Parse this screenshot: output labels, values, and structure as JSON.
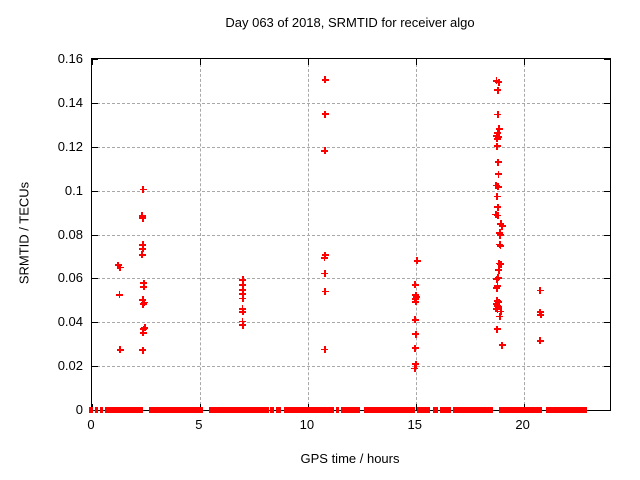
{
  "chart_data": {
    "type": "scatter",
    "title": "Day 063 of 2018, SRMTID for receiver algo",
    "xlabel": "GPS time / hours",
    "ylabel": "SRMTID / TECUs",
    "xlim": [
      0,
      24
    ],
    "ylim": [
      0,
      0.16
    ],
    "grid": true,
    "legend": "none",
    "marker": "plus",
    "marker_color": "#ff0000",
    "background_color": "#ffffff",
    "grid_color": "#a8a8a8",
    "x_ticks": [
      0,
      5,
      10,
      15,
      20
    ],
    "x_tick_labels": [
      "0",
      "5",
      "10",
      "15",
      "20"
    ],
    "y_ticks": [
      0,
      0.02,
      0.04,
      0.06,
      0.08,
      0.1,
      0.12,
      0.14,
      0.16
    ],
    "y_tick_labels": [
      "0",
      "0.02",
      "0.04",
      "0.06",
      "0.08",
      "0.1",
      "0.12",
      "0.14",
      "0.16"
    ],
    "series": [
      {
        "name": "SRMTID",
        "points": [
          [
            1.22,
            0.066
          ],
          [
            1.31,
            0.065
          ],
          [
            1.27,
            0.0525
          ],
          [
            1.31,
            0.0275
          ],
          [
            2.38,
            0.1005
          ],
          [
            2.33,
            0.0886
          ],
          [
            2.35,
            0.0875
          ],
          [
            2.35,
            0.0753
          ],
          [
            2.35,
            0.0735
          ],
          [
            2.32,
            0.0708
          ],
          [
            2.4,
            0.0578
          ],
          [
            2.4,
            0.0562
          ],
          [
            2.36,
            0.0503
          ],
          [
            2.42,
            0.049
          ],
          [
            2.37,
            0.0482
          ],
          [
            2.45,
            0.0374
          ],
          [
            2.39,
            0.0368
          ],
          [
            2.38,
            0.0352
          ],
          [
            2.36,
            0.0272
          ],
          [
            6.98,
            0.0593
          ],
          [
            6.98,
            0.057
          ],
          [
            6.98,
            0.0548
          ],
          [
            6.98,
            0.0527
          ],
          [
            6.98,
            0.0508
          ],
          [
            6.97,
            0.0462
          ],
          [
            6.98,
            0.0447
          ],
          [
            6.97,
            0.0403
          ],
          [
            6.99,
            0.0386
          ],
          [
            10.8,
            0.1505
          ],
          [
            10.8,
            0.1348
          ],
          [
            10.78,
            0.1182
          ],
          [
            10.8,
            0.0706
          ],
          [
            10.77,
            0.0694
          ],
          [
            10.79,
            0.0622
          ],
          [
            10.8,
            0.054
          ],
          [
            10.79,
            0.0276
          ],
          [
            15.06,
            0.068
          ],
          [
            14.98,
            0.057
          ],
          [
            15.0,
            0.0524
          ],
          [
            15.03,
            0.0514
          ],
          [
            14.97,
            0.0505
          ],
          [
            15.0,
            0.0494
          ],
          [
            14.97,
            0.0411
          ],
          [
            15.0,
            0.0346
          ],
          [
            14.98,
            0.0282
          ],
          [
            15.0,
            0.0208
          ],
          [
            14.96,
            0.0189
          ],
          [
            18.74,
            0.15
          ],
          [
            18.85,
            0.1494
          ],
          [
            18.8,
            0.1457
          ],
          [
            18.8,
            0.1347
          ],
          [
            18.86,
            0.1282
          ],
          [
            18.8,
            0.1262
          ],
          [
            18.76,
            0.125
          ],
          [
            18.85,
            0.1245
          ],
          [
            18.78,
            0.1237
          ],
          [
            18.77,
            0.1203
          ],
          [
            18.82,
            0.113
          ],
          [
            18.83,
            0.1075
          ],
          [
            18.73,
            0.1023
          ],
          [
            18.82,
            0.1017
          ],
          [
            18.78,
            0.0973
          ],
          [
            18.81,
            0.0924
          ],
          [
            18.71,
            0.0891
          ],
          [
            18.8,
            0.0887
          ],
          [
            18.94,
            0.0848
          ],
          [
            19.0,
            0.0838
          ],
          [
            18.9,
            0.0808
          ],
          [
            18.92,
            0.0797
          ],
          [
            18.9,
            0.0754
          ],
          [
            18.93,
            0.0748
          ],
          [
            18.87,
            0.0668
          ],
          [
            18.94,
            0.0664
          ],
          [
            18.84,
            0.0638
          ],
          [
            18.82,
            0.0602
          ],
          [
            18.76,
            0.0597
          ],
          [
            18.79,
            0.0564
          ],
          [
            18.75,
            0.0555
          ],
          [
            18.78,
            0.0497
          ],
          [
            18.85,
            0.0492
          ],
          [
            18.72,
            0.0482
          ],
          [
            18.78,
            0.0475
          ],
          [
            18.83,
            0.047
          ],
          [
            18.73,
            0.0462
          ],
          [
            18.79,
            0.0458
          ],
          [
            18.94,
            0.0449
          ],
          [
            18.89,
            0.0426
          ],
          [
            18.78,
            0.0368
          ],
          [
            19.0,
            0.0295
          ],
          [
            20.77,
            0.0545
          ],
          [
            20.76,
            0.0446
          ],
          [
            20.79,
            0.0434
          ],
          [
            20.77,
            0.0315
          ]
        ]
      }
    ],
    "zero_band_segments": [
      [
        -0.12,
        0.05
      ],
      [
        0.12,
        0.28
      ],
      [
        0.36,
        0.53
      ],
      [
        0.6,
        2.35
      ],
      [
        2.66,
        5.12
      ],
      [
        5.4,
        8.18
      ],
      [
        8.27,
        8.45
      ],
      [
        8.52,
        8.78
      ],
      [
        8.88,
        11.2
      ],
      [
        11.3,
        11.44
      ],
      [
        11.52,
        12.42
      ],
      [
        12.58,
        14.97
      ],
      [
        15.05,
        15.67
      ],
      [
        15.82,
        16.04
      ],
      [
        16.14,
        16.64
      ],
      [
        16.74,
        18.58
      ],
      [
        18.85,
        20.87
      ],
      [
        21.04,
        22.93
      ]
    ]
  }
}
